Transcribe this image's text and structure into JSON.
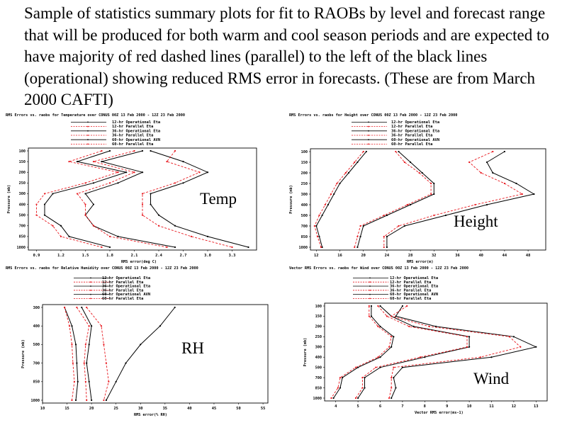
{
  "slide": {
    "title": "Sample of statistics summary plots for fit to RAOBs by level and forecast range that will be produced for both warm and cool season periods and are expected to have majority of red dashed lines (parallel) to the left of the black lines (operational) showing reduced RMS error in forecasts. (These are from March 2000 CAFTI)"
  },
  "colors": {
    "operational": "#000000",
    "parallel": "#e8171d",
    "frame": "#000000"
  },
  "chart_data": [
    {
      "id": "temp",
      "type": "line",
      "panel_label": "Temp",
      "title": "RMS Errors vs. raobs for Temperature over CONUS 00Z 13 Feb 2000 - 12Z 23 Feb 2000",
      "xlabel": "RMS error(deg C)",
      "ylabel": "Pressure (mb)",
      "y_levels": [
        "100",
        "150",
        "200",
        "250",
        "300",
        "400",
        "500",
        "700",
        "850",
        "1000"
      ],
      "xlim": [
        0.8,
        3.6
      ],
      "x_ticks": [
        "0.9",
        "1.2",
        "1.5",
        "1.8",
        "2.1",
        "2.4",
        "2.7",
        "3.0",
        "3.3"
      ],
      "legend": [
        "12-hr Operational Eta",
        "12-hr Parallel Eta",
        "36-hr Operational Eta",
        "36-hr Parallel Eta",
        "60-hr Operational AVN",
        "60-hr Parallel Eta"
      ],
      "series": [
        {
          "name": "12-hr Operational Eta",
          "color": "#000000",
          "dash": false,
          "values": [
            1.8,
            1.4,
            2.0,
            1.6,
            1.1,
            1.0,
            1.0,
            1.2,
            1.3,
            1.8
          ]
        },
        {
          "name": "12-hr Parallel Eta",
          "color": "#e8171d",
          "dash": true,
          "values": [
            1.7,
            1.3,
            1.9,
            1.5,
            1.0,
            0.9,
            0.9,
            1.1,
            1.2,
            1.7
          ]
        },
        {
          "name": "36-hr Operational Eta",
          "color": "#000000",
          "dash": false,
          "values": [
            2.2,
            1.7,
            2.2,
            1.9,
            1.5,
            1.6,
            1.5,
            1.6,
            1.9,
            2.6
          ]
        },
        {
          "name": "36-hr Parallel Eta",
          "color": "#e8171d",
          "dash": true,
          "values": [
            2.1,
            1.6,
            2.1,
            1.8,
            1.4,
            1.5,
            1.5,
            1.6,
            1.8,
            2.5
          ]
        },
        {
          "name": "60-hr Operational AVN",
          "color": "#000000",
          "dash": false,
          "values": [
            2.3,
            2.7,
            3.0,
            2.7,
            2.3,
            2.3,
            2.4,
            2.6,
            3.0,
            3.5
          ]
        },
        {
          "name": "60-hr Parallel Eta",
          "color": "#e8171d",
          "dash": true,
          "values": [
            2.6,
            2.5,
            2.9,
            2.6,
            2.2,
            2.2,
            2.2,
            2.4,
            2.8,
            3.3
          ]
        }
      ]
    },
    {
      "id": "height",
      "type": "line",
      "panel_label": "Height",
      "title": "RMS Errors vs. raobs for Height over CONUS 00Z 13 Feb 2000 - 12Z 23 Feb 2000",
      "xlabel": "RMS error(m)",
      "ylabel": "Pressure (mb)",
      "y_levels": [
        "100",
        "150",
        "200",
        "250",
        "300",
        "400",
        "500",
        "700",
        "850",
        "1000"
      ],
      "xlim": [
        11,
        51
      ],
      "x_ticks": [
        "12",
        "16",
        "20",
        "24",
        "28",
        "32",
        "36",
        "40",
        "44",
        "48"
      ],
      "legend": [
        "12-hr Operational Eta",
        "12-hr Parallel Eta",
        "36-hr Operational Eta",
        "36-hr Parallel Eta",
        "60-hr Operational AVN",
        "60-hr Parallel Eta"
      ],
      "series": [
        {
          "name": "12-hr Operational Eta",
          "color": "#000000",
          "dash": false,
          "values": [
            20.5,
            19,
            17.5,
            16,
            15,
            14,
            13,
            12,
            12.5,
            13
          ]
        },
        {
          "name": "12-hr Parallel Eta",
          "color": "#e8171d",
          "dash": true,
          "values": [
            20,
            18.5,
            17,
            15.5,
            14.5,
            13.5,
            12.5,
            11.7,
            12.2,
            12.8
          ]
        },
        {
          "name": "36-hr Operational Eta",
          "color": "#000000",
          "dash": false,
          "values": [
            26,
            28,
            30,
            32,
            32,
            28,
            24,
            20,
            19.5,
            19
          ]
        },
        {
          "name": "36-hr Parallel Eta",
          "color": "#e8171d",
          "dash": true,
          "values": [
            25.5,
            27,
            29.5,
            31.5,
            31.5,
            27.5,
            23.5,
            19.5,
            19,
            18.5
          ]
        },
        {
          "name": "60-hr Operational AVN",
          "color": "#000000",
          "dash": false,
          "values": [
            44,
            41,
            42,
            46,
            49,
            41,
            34,
            27,
            24,
            24
          ]
        },
        {
          "name": "60-hr Parallel Eta",
          "color": "#e8171d",
          "dash": true,
          "values": [
            42,
            38,
            40,
            44,
            47,
            39,
            32,
            26,
            23.5,
            23.5
          ]
        }
      ]
    },
    {
      "id": "rh",
      "type": "line",
      "panel_label": "RH",
      "title": "RMS Errors vs. raobs for Relative Humidity over CONUS 00Z 13 Feb 2000 - 12Z 23 Feb 2000",
      "xlabel": "RMS error(% RH)",
      "ylabel": "Pressure (mb)",
      "y_levels": [
        "300",
        "400",
        "500",
        "700",
        "850",
        "1000"
      ],
      "xlim": [
        10,
        56
      ],
      "x_ticks": [
        "10",
        "15",
        "20",
        "25",
        "30",
        "35",
        "40",
        "45",
        "50",
        "55"
      ],
      "legend": [
        "12-hr Operational Eta",
        "12-hr Parallel Eta",
        "36-hr Operational Eta",
        "36-hr Parallel Eta",
        "60-hr Operational AVN",
        "60-hr Parallel Eta"
      ],
      "series": [
        {
          "name": "12-hr Operational Eta",
          "color": "#000000",
          "dash": false,
          "values": [
            14.5,
            16,
            16.8,
            17,
            17.2,
            16.8
          ]
        },
        {
          "name": "12-hr Parallel Eta",
          "color": "#e8171d",
          "dash": true,
          "values": [
            14.5,
            15.5,
            16,
            16.2,
            16.5,
            16
          ]
        },
        {
          "name": "36-hr Operational Eta",
          "color": "#000000",
          "dash": false,
          "values": [
            18,
            20,
            19.5,
            19,
            19.5,
            20
          ]
        },
        {
          "name": "36-hr Parallel Eta",
          "color": "#e8171d",
          "dash": true,
          "values": [
            17,
            19.5,
            18.8,
            18.5,
            18.8,
            19
          ]
        },
        {
          "name": "60-hr Operational AVN",
          "color": "#000000",
          "dash": false,
          "values": [
            37,
            34,
            30,
            27,
            25,
            23
          ]
        },
        {
          "name": "60-hr Parallel Eta",
          "color": "#e8171d",
          "dash": true,
          "values": [
            19,
            22,
            22.5,
            23,
            23.5,
            22.5
          ]
        }
      ]
    },
    {
      "id": "wind",
      "type": "line",
      "panel_label": "Wind",
      "title": "Vector RMS Errors vs. raobs for Wind over CONUS 00Z 13 Feb 2000 - 12Z 23 Feb 2000",
      "xlabel": "Vector RMS error(ms-1)",
      "ylabel": "Pressure (mb)",
      "y_levels": [
        "100",
        "150",
        "200",
        "250",
        "300",
        "400",
        "500",
        "700",
        "850",
        "1000"
      ],
      "xlim": [
        3.5,
        13.5
      ],
      "x_ticks": [
        "4",
        "5",
        "6",
        "7",
        "8",
        "9",
        "10",
        "11",
        "12",
        "13"
      ],
      "legend": [
        "12-hr Operational Eta",
        "12-hr Parallel Eta",
        "36-hr Operational Eta",
        "36-hr Parallel Eta",
        "60-hr Operational AVN",
        "60-hr Parallel Eta"
      ],
      "series": [
        {
          "name": "12-hr Operational Eta",
          "color": "#000000",
          "dash": false,
          "values": [
            5.6,
            5.6,
            6.0,
            6.6,
            6.5,
            6.0,
            5.0,
            4.3,
            4.2,
            3.9
          ]
        },
        {
          "name": "12-hr Parallel Eta",
          "color": "#e8171d",
          "dash": true,
          "values": [
            5.5,
            5.5,
            5.9,
            6.5,
            6.4,
            5.9,
            4.9,
            4.2,
            4.1,
            3.8
          ]
        },
        {
          "name": "36-hr Operational Eta",
          "color": "#000000",
          "dash": false,
          "values": [
            6.0,
            6.5,
            7.5,
            10.0,
            10.0,
            8.0,
            6.0,
            5.3,
            5.3,
            5.0
          ]
        },
        {
          "name": "36-hr Parallel Eta",
          "color": "#e8171d",
          "dash": true,
          "values": [
            5.9,
            6.3,
            7.3,
            9.9,
            9.9,
            7.8,
            5.8,
            5.2,
            5.2,
            4.9
          ]
        },
        {
          "name": "60-hr Operational AVN",
          "color": "#000000",
          "dash": false,
          "values": [
            7.0,
            6.7,
            8.5,
            12.0,
            13.0,
            11.0,
            7.0,
            6.6,
            6.7,
            6.5
          ]
        },
        {
          "name": "60-hr Parallel Eta",
          "color": "#e8171d",
          "dash": true,
          "values": [
            7.2,
            6.5,
            8.2,
            11.8,
            12.3,
            10.5,
            6.6,
            6.5,
            6.5,
            6.4
          ]
        }
      ]
    }
  ]
}
